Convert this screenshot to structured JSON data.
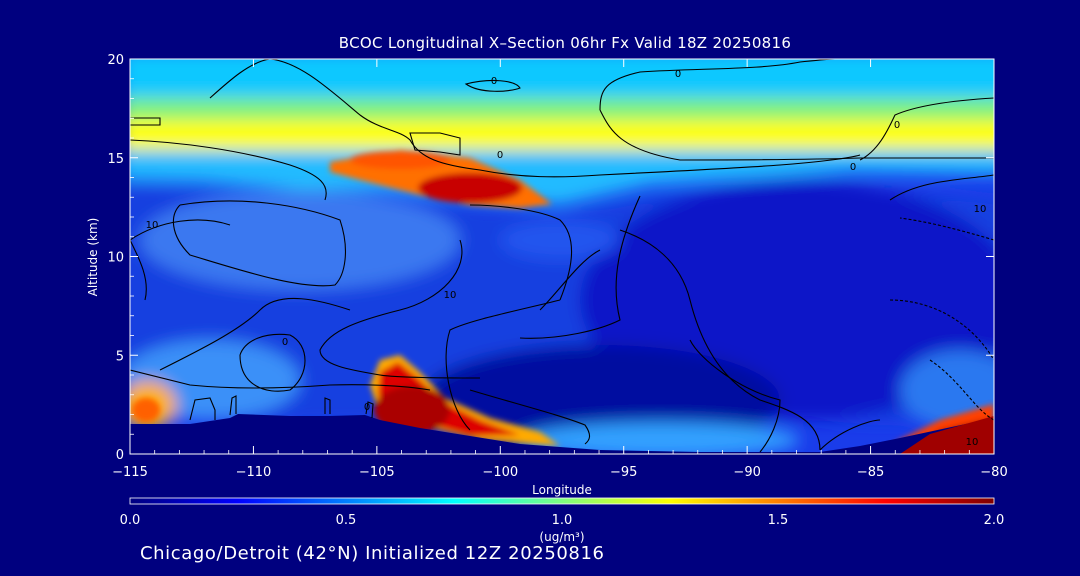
{
  "chart_data": {
    "type": "heatmap",
    "title": "BCOC Longitudinal X–Section 06hr  Fx Valid 18Z 20250816",
    "subtitle": "Chicago/Detroit (42°N) Initialized 12Z 20250816",
    "xlabel": "Longitude",
    "ylabel": "Altitude (km)",
    "xlim": [
      -115,
      -80
    ],
    "ylim": [
      0,
      20
    ],
    "x_ticks": [
      "−115",
      "−110",
      "−105",
      "−100",
      "−95",
      "−90",
      "−85",
      "−80"
    ],
    "x_tick_values": [
      -115,
      -110,
      -105,
      -100,
      -95,
      -90,
      -85,
      -80
    ],
    "y_ticks": [
      "0",
      "5",
      "10",
      "15",
      "20"
    ],
    "y_tick_values": [
      0,
      5,
      10,
      15,
      20
    ],
    "colorbar": {
      "ticks": [
        "0.0",
        "0.5",
        "1.0",
        "1.5",
        "2.0"
      ],
      "tick_values": [
        0,
        0.5,
        1.0,
        1.5,
        2.0
      ],
      "range": [
        0,
        2
      ],
      "units": "(ug/m³)"
    },
    "contour_labels": [
      "0",
      "0",
      "0",
      "0",
      "0",
      "0",
      "0",
      "10",
      "10",
      "10",
      "10"
    ],
    "field_features": [
      {
        "description": "upper band",
        "lon": [
          -115,
          -80
        ],
        "alt": [
          14.5,
          17
        ],
        "value": 1.05
      },
      {
        "description": "upper maximum",
        "lon": [
          -103,
          -99
        ],
        "alt": [
          12.5,
          14
        ],
        "value": 1.9
      },
      {
        "description": "low-level plume",
        "lon": [
          -105,
          -97
        ],
        "alt": [
          0.5,
          4
        ],
        "value": 1.95
      },
      {
        "description": "eastern surface maximum",
        "lon": [
          -84,
          -80
        ],
        "alt": [
          0,
          2
        ],
        "value": 2.0
      },
      {
        "description": "western surface",
        "lon": [
          -115,
          -113
        ],
        "alt": [
          1.5,
          3
        ],
        "value": 1.7
      }
    ]
  }
}
